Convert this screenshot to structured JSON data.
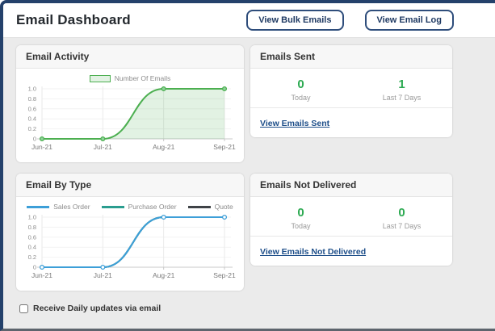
{
  "header": {
    "title": "Email Dashboard",
    "buttons": [
      {
        "label": "View Bulk Emails"
      },
      {
        "label": "View Email Log"
      }
    ]
  },
  "panels": {
    "email_activity": {
      "title": "Email Activity"
    },
    "emails_sent": {
      "title": "Emails Sent",
      "stats": [
        {
          "value": "0",
          "label": "Today"
        },
        {
          "value": "1",
          "label": "Last 7 Days"
        }
      ],
      "link": "View Emails Sent"
    },
    "email_by_type": {
      "title": "Email By Type"
    },
    "emails_not_delivered": {
      "title": "Emails Not Delivered",
      "stats": [
        {
          "value": "0",
          "label": "Today"
        },
        {
          "value": "0",
          "label": "Last 7 Days"
        }
      ],
      "link": "View Emails Not Delivered"
    }
  },
  "footer": {
    "checkbox_label": "Receive Daily updates via email",
    "checked": false
  },
  "colors": {
    "window_border": "#24416b",
    "button_border": "#2e4d7b",
    "stat_green": "#2daa52",
    "link_navy": "#1d4e89",
    "activity_green": "#4caf50",
    "sales_order_blue": "#3d9fd8",
    "purchase_order_teal": "#2a9d8f",
    "quote_dark": "#3f4347"
  },
  "chart_data": [
    {
      "id": "email-activity-chart",
      "type": "area",
      "title": "Email Activity",
      "x": [
        "Jun-21",
        "Jul-21",
        "Aug-21",
        "Sep-21"
      ],
      "series": [
        {
          "name": "Number Of Emails",
          "values": [
            0,
            0,
            1,
            1
          ],
          "color": "#4caf50",
          "fill": "rgba(76,175,80,0.16)",
          "markers": true,
          "marker_fill": "#8fd39a"
        }
      ],
      "xlabel": "",
      "ylabel": "",
      "ylim": [
        0,
        1
      ],
      "yticks": [
        0,
        0.2,
        0.4,
        0.6,
        0.8,
        1.0
      ],
      "grid": true,
      "legend_position": "top"
    },
    {
      "id": "email-by-type-chart",
      "type": "line",
      "title": "Email By Type",
      "x": [
        "Jun-21",
        "Jul-21",
        "Aug-21",
        "Sep-21"
      ],
      "series": [
        {
          "name": "Sales Order",
          "values": [
            0,
            0,
            1,
            1
          ],
          "color": "#3d9fd8",
          "markers": true,
          "marker_fill": "#ffffff"
        },
        {
          "name": "Purchase Order",
          "values": [
            0,
            0,
            1,
            1
          ],
          "color": "#2a9d8f",
          "markers": false
        },
        {
          "name": "Quote",
          "values": [
            0,
            0,
            1,
            1
          ],
          "color": "#3f4347",
          "markers": false
        }
      ],
      "xlabel": "",
      "ylabel": "",
      "ylim": [
        0,
        1
      ],
      "yticks": [
        0,
        0.2,
        0.4,
        0.6,
        0.8,
        1.0
      ],
      "grid": true,
      "legend_position": "top"
    }
  ]
}
